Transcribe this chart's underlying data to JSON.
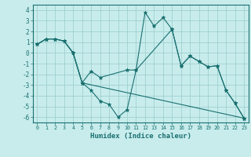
{
  "xlabel": "Humidex (Indice chaleur)",
  "bg_color": "#c8ecec",
  "grid_color": "#a0d0d0",
  "line_color": "#1a7070",
  "marker_color": "#1a7070",
  "xlim": [
    -0.5,
    23.5
  ],
  "ylim": [
    -6.5,
    4.5
  ],
  "yticks": [
    -6,
    -5,
    -4,
    -3,
    -2,
    -1,
    0,
    1,
    2,
    3,
    4
  ],
  "xticks": [
    0,
    1,
    2,
    3,
    4,
    5,
    6,
    7,
    8,
    9,
    10,
    11,
    12,
    13,
    14,
    15,
    16,
    17,
    18,
    19,
    20,
    21,
    22,
    23
  ],
  "lines": [
    {
      "x": [
        0,
        1,
        2,
        3,
        4,
        5,
        6,
        7,
        8,
        9,
        10,
        11,
        12,
        13,
        14,
        15,
        16,
        17,
        18,
        19,
        20,
        21,
        22,
        23
      ],
      "y": [
        0.8,
        1.3,
        1.3,
        1.1,
        0.0,
        -2.8,
        -3.5,
        -4.5,
        -4.8,
        -6.0,
        -5.3,
        -1.6,
        3.8,
        2.5,
        3.3,
        2.2,
        -1.2,
        -0.3,
        -0.8,
        -1.3,
        -1.2,
        -3.5,
        -4.7,
        -6.1
      ]
    },
    {
      "x": [
        0,
        1,
        2,
        3,
        4,
        5,
        6,
        7,
        10,
        11,
        15,
        16,
        17,
        18,
        19,
        20,
        21,
        22,
        23
      ],
      "y": [
        0.8,
        1.3,
        1.3,
        1.1,
        0.0,
        -2.8,
        -1.7,
        -2.3,
        -1.6,
        -1.6,
        2.2,
        -1.2,
        -0.3,
        -0.8,
        -1.3,
        -1.2,
        -3.5,
        -4.7,
        -6.1
      ]
    },
    {
      "x": [
        0,
        1,
        2,
        3,
        4,
        5,
        23
      ],
      "y": [
        0.8,
        1.3,
        1.3,
        1.1,
        0.0,
        -2.8,
        -6.1
      ]
    }
  ]
}
